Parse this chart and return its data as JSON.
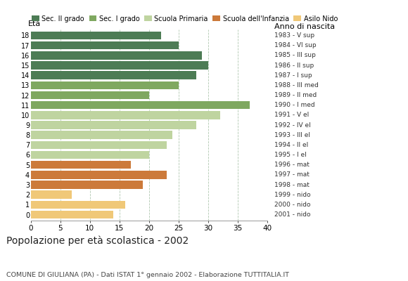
{
  "ages": [
    18,
    17,
    16,
    15,
    14,
    13,
    12,
    11,
    10,
    9,
    8,
    7,
    6,
    5,
    4,
    3,
    2,
    1,
    0
  ],
  "values": [
    22,
    25,
    29,
    30,
    28,
    25,
    20,
    37,
    32,
    28,
    24,
    23,
    20,
    17,
    23,
    19,
    7,
    16,
    14
  ],
  "right_labels": [
    "1983 - V sup",
    "1984 - VI sup",
    "1985 - III sup",
    "1986 - II sup",
    "1987 - I sup",
    "1988 - III med",
    "1989 - II med",
    "1990 - I med",
    "1991 - V el",
    "1992 - IV el",
    "1993 - III el",
    "1994 - II el",
    "1995 - I el",
    "1996 - mat",
    "1997 - mat",
    "1998 - mat",
    "1999 - nido",
    "2000 - nido",
    "2001 - nido"
  ],
  "bar_colors": [
    "#4d7c55",
    "#4d7c55",
    "#4d7c55",
    "#4d7c55",
    "#4d7c55",
    "#7fa860",
    "#7fa860",
    "#7fa860",
    "#bfd4a0",
    "#bfd4a0",
    "#bfd4a0",
    "#bfd4a0",
    "#bfd4a0",
    "#cc7a3a",
    "#cc7a3a",
    "#cc7a3a",
    "#f0c878",
    "#f0c878",
    "#f0c878"
  ],
  "legend_labels": [
    "Sec. II grado",
    "Sec. I grado",
    "Scuola Primaria",
    "Scuola dell'Infanzia",
    "Asilo Nido"
  ],
  "legend_colors": [
    "#4d7c55",
    "#7fa860",
    "#bfd4a0",
    "#cc7a3a",
    "#f0c878"
  ],
  "title": "Popolazione per età scolastica - 2002",
  "subtitle": "COMUNE DI GIULIANA (PA) - Dati ISTAT 1° gennaio 2002 - Elaborazione TUTTITALIA.IT",
  "ylabel_age": "Età",
  "ylabel_birth": "Anno di nascita",
  "xlabel_max": 40,
  "xticks": [
    0,
    5,
    10,
    15,
    20,
    25,
    30,
    35,
    40
  ],
  "bg_color": "#ffffff",
  "grid_color": "#b0c8b0",
  "bar_height": 0.82
}
